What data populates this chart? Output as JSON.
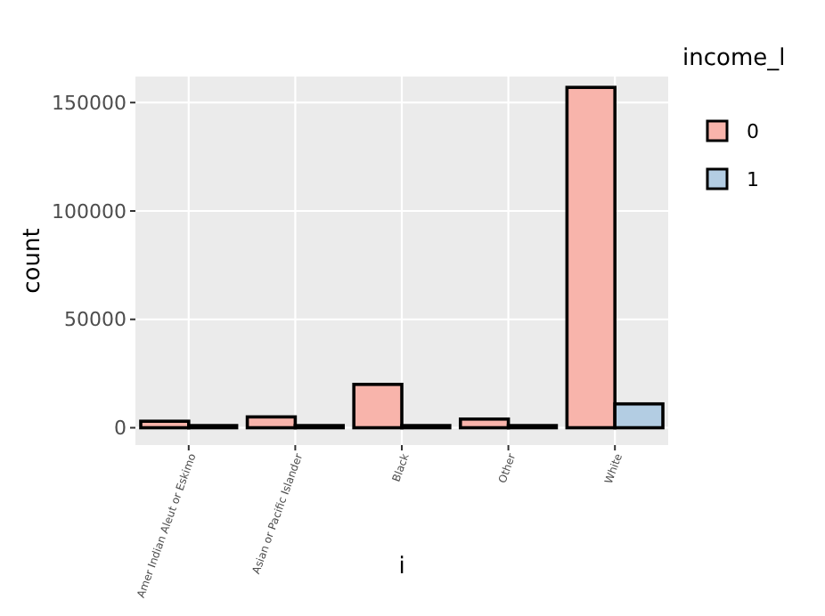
{
  "chart_data": {
    "type": "bar",
    "xlabel": "i",
    "ylabel": "count",
    "legend_title": "income_l",
    "categories": [
      "Amer Indian Aleut or Eskimo",
      "Asian or Pacific Islander",
      "Black",
      "Other",
      "White"
    ],
    "series": [
      {
        "name": "0",
        "color": "#f8b4ab",
        "values": [
          3000,
          5000,
          20000,
          4000,
          157000
        ]
      },
      {
        "name": "1",
        "color": "#b3cde3",
        "values": [
          1000,
          1000,
          1000,
          1000,
          11000
        ]
      }
    ],
    "ylim": [
      -8000,
      162000
    ],
    "yticks": [
      0,
      50000,
      100000,
      150000
    ],
    "grid": true,
    "legend": "right"
  }
}
